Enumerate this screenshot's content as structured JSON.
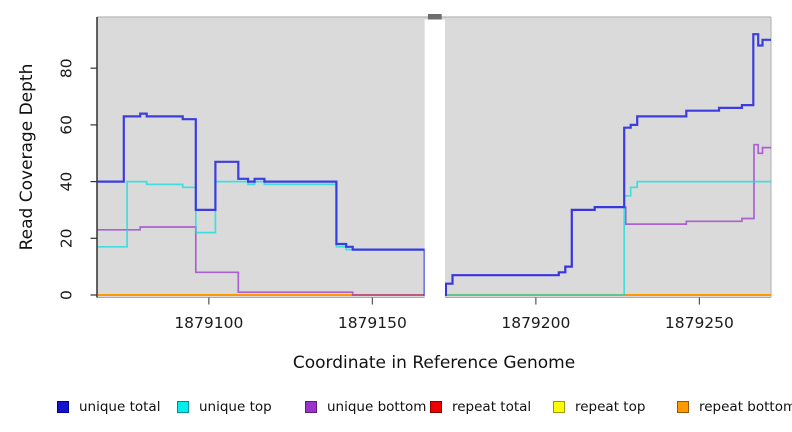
{
  "chart_data": {
    "type": "line",
    "step": true,
    "xlabel": "Coordinate in Reference Genome",
    "ylabel": "Read Coverage Depth",
    "x_ticks": [
      1879100,
      1879150,
      1879200,
      1879250
    ],
    "y_ticks": [
      0,
      20,
      40,
      60,
      80
    ],
    "xlim": [
      1879065.8,
      1879271.9
    ],
    "ylim": [
      0,
      98
    ],
    "grid": false,
    "plot_bg": "#DADADA",
    "masked_region": {
      "x1": 1879166,
      "x2": 1879172.2,
      "tick_x1": 1879167,
      "tick_x2": 1879171.2
    },
    "series": [
      {
        "name": "unique total",
        "color": "#3030DF",
        "width": 2.2,
        "opacity": 0.92,
        "points": [
          [
            1879066,
            40
          ],
          [
            1879074,
            63
          ],
          [
            1879079,
            64
          ],
          [
            1879081,
            63
          ],
          [
            1879092,
            62
          ],
          [
            1879096,
            30
          ],
          [
            1879102,
            47
          ],
          [
            1879109,
            41
          ],
          [
            1879112,
            40
          ],
          [
            1879114,
            41
          ],
          [
            1879117,
            40
          ],
          [
            1879139,
            18
          ],
          [
            1879142,
            17
          ],
          [
            1879144,
            16
          ],
          [
            1879166,
            0
          ],
          [
            1879172.5,
            4
          ],
          [
            1879174.5,
            7
          ],
          [
            1879207,
            8
          ],
          [
            1879209,
            10
          ],
          [
            1879211,
            30
          ],
          [
            1879218,
            31
          ],
          [
            1879227,
            59
          ],
          [
            1879229,
            60
          ],
          [
            1879231,
            63
          ],
          [
            1879246,
            65
          ],
          [
            1879256,
            66
          ],
          [
            1879263,
            67
          ],
          [
            1879266.5,
            92
          ],
          [
            1879268,
            88
          ],
          [
            1879269.3,
            90
          ]
        ]
      },
      {
        "name": "unique top",
        "color": "#00E0E0",
        "width": 1.7,
        "opacity": 0.7,
        "points": [
          [
            1879066,
            17
          ],
          [
            1879075,
            40
          ],
          [
            1879081,
            39
          ],
          [
            1879092,
            38
          ],
          [
            1879096,
            22
          ],
          [
            1879102,
            40
          ],
          [
            1879112,
            39
          ],
          [
            1879114,
            40
          ],
          [
            1879117,
            39
          ],
          [
            1879139,
            17
          ],
          [
            1879142,
            16
          ],
          [
            1879166,
            0
          ],
          [
            1879227,
            35
          ],
          [
            1879229,
            38
          ],
          [
            1879231,
            40
          ]
        ]
      },
      {
        "name": "unique bottom",
        "color": "#9933CC",
        "width": 1.7,
        "opacity": 0.72,
        "points": [
          [
            1879066,
            23
          ],
          [
            1879079,
            24
          ],
          [
            1879096,
            8
          ],
          [
            1879109,
            1
          ],
          [
            1879144,
            0
          ],
          [
            1879172.5,
            4
          ],
          [
            1879174.5,
            7
          ],
          [
            1879207,
            8
          ],
          [
            1879209,
            10
          ],
          [
            1879211,
            30
          ],
          [
            1879218,
            31
          ],
          [
            1879227.5,
            25
          ],
          [
            1879246,
            26
          ],
          [
            1879263,
            27
          ],
          [
            1879266.7,
            53
          ],
          [
            1879268,
            50
          ],
          [
            1879269.3,
            52
          ]
        ]
      },
      {
        "name": "repeat total",
        "color": "#E02020",
        "width": 1.4,
        "opacity": 1,
        "points": [
          [
            1879066,
            0
          ]
        ]
      },
      {
        "name": "repeat top",
        "color": "#F0F000",
        "width": 1.4,
        "opacity": 1,
        "points": [
          [
            1879066,
            0
          ]
        ]
      },
      {
        "name": "repeat bottom",
        "color": "#FF9700",
        "width": 2.1,
        "opacity": 1,
        "points": [
          [
            1879066,
            0
          ]
        ]
      }
    ],
    "draw_order": [
      "repeat total",
      "repeat top",
      "repeat bottom",
      "unique bottom",
      "unique top",
      "unique total"
    ],
    "legend": [
      {
        "label": "unique total",
        "swatch": "#1414CC",
        "border": "#00008B"
      },
      {
        "label": "unique top",
        "swatch": "#00EEEE",
        "border": "#008F8F"
      },
      {
        "label": "unique bottom",
        "swatch": "#9933CC",
        "border": "#5C1F7A"
      },
      {
        "label": "repeat total",
        "swatch": "#EE0000",
        "border": "#8B0000"
      },
      {
        "label": "repeat top",
        "swatch": "#FFFF00",
        "border": "#9A9A00"
      },
      {
        "label": "repeat bottom",
        "swatch": "#FF9900",
        "border": "#995500"
      }
    ]
  }
}
